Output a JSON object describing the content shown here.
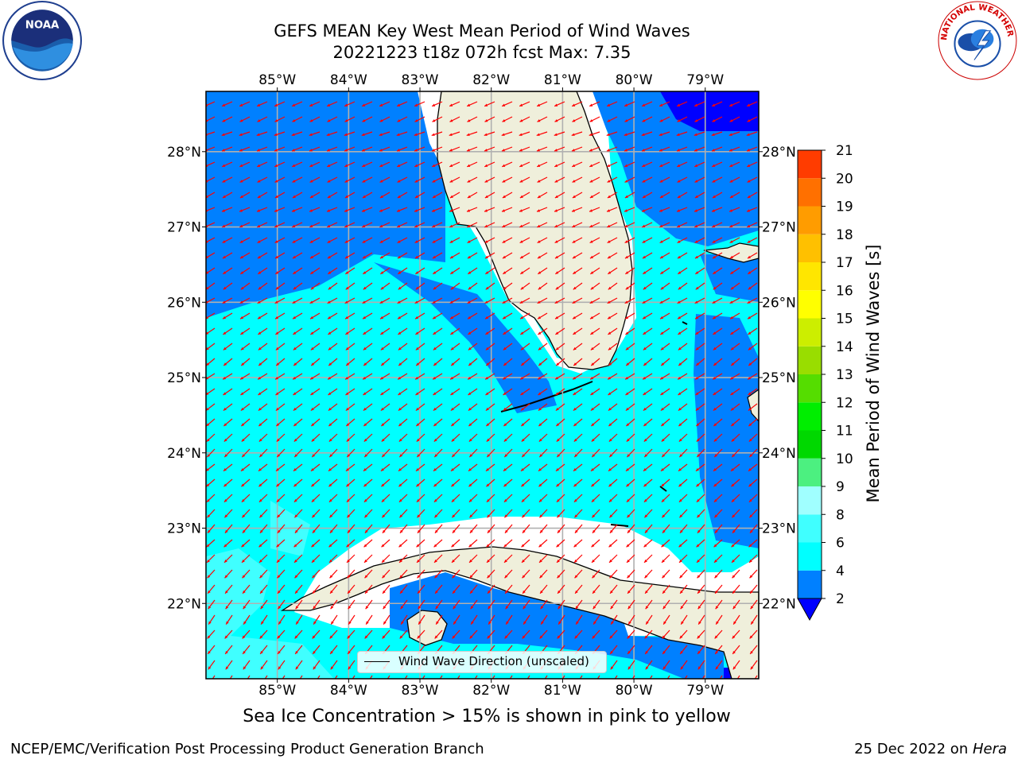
{
  "title": {
    "line1": "GEFS MEAN Key West Mean Period of Wind Waves",
    "line2": "20221223 t18z 072h fcst   Max: 7.35"
  },
  "map": {
    "lon_range": [
      -86.0,
      -78.25
    ],
    "lat_range": [
      21.0,
      28.8
    ],
    "lon_ticks": [
      "85°W",
      "84°W",
      "83°W",
      "82°W",
      "81°W",
      "80°W",
      "79°W"
    ],
    "lat_ticks": [
      "22°N",
      "23°N",
      "24°N",
      "25°N",
      "26°N",
      "27°N",
      "28°N"
    ],
    "arrow_color": "#ff0000",
    "land_color": "#efefdb",
    "grid_color": "#b0b0b0"
  },
  "legend": {
    "label": "Wind Wave Direction (unscaled)"
  },
  "colorbar": {
    "label": "Mean Period of Wind Waves [s]",
    "ticks": [
      "2",
      "4",
      "6",
      "8",
      "9",
      "10",
      "11",
      "12",
      "13",
      "14",
      "15",
      "16",
      "17",
      "18",
      "19",
      "20",
      "21"
    ],
    "colors": [
      "#0080ff",
      "#00ffff",
      "#40ffff",
      "#a0ffff",
      "#4cf080",
      "#00d800",
      "#00ee00",
      "#55dd00",
      "#99dd00",
      "#ccee00",
      "#ffff00",
      "#ffe600",
      "#ffc000",
      "#ff9c00",
      "#ff7000",
      "#ff3c00",
      "#ff0000"
    ],
    "underflow_color": "#0000ff"
  },
  "ice_note": "Sea Ice Concentration > 15% is shown in pink to yellow",
  "footer": {
    "left": "NCEP/EMC/Verification Post Processing Product Generation Branch",
    "right_date": "25 Dec 2022 on ",
    "right_host": "Hera"
  },
  "logos": {
    "left": "NOAA",
    "right": "NATIONAL WEATHER SERVICE"
  }
}
